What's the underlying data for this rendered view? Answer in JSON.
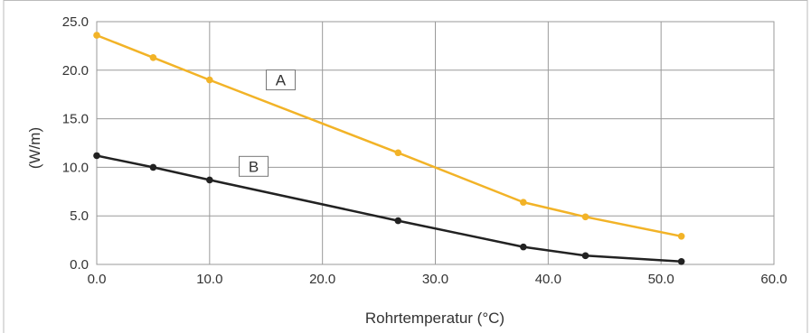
{
  "chart_data": {
    "type": "line",
    "title": "",
    "xlabel": "Rohrtemperatur (°C)",
    "ylabel": "(W/m)",
    "xlim": [
      0,
      60
    ],
    "ylim": [
      0,
      25
    ],
    "x_ticks": [
      "0.0",
      "10.0",
      "20.0",
      "30.0",
      "40.0",
      "50.0",
      "60.0"
    ],
    "y_ticks": [
      "0.0",
      "5.0",
      "10.0",
      "15.0",
      "20.0",
      "25.0"
    ],
    "grid": true,
    "series": [
      {
        "name": "A",
        "color": "#f2b327",
        "points": [
          {
            "x": 0.0,
            "y": 23.6
          },
          {
            "x": 5.0,
            "y": 21.3
          },
          {
            "x": 10.0,
            "y": 19.0
          },
          {
            "x": 26.7,
            "y": 11.5
          },
          {
            "x": 37.8,
            "y": 6.4
          },
          {
            "x": 43.3,
            "y": 4.9
          },
          {
            "x": 51.8,
            "y": 2.9
          }
        ]
      },
      {
        "name": "B",
        "color": "#222222",
        "points": [
          {
            "x": 0.0,
            "y": 11.2
          },
          {
            "x": 5.0,
            "y": 10.0
          },
          {
            "x": 10.0,
            "y": 8.7
          },
          {
            "x": 26.7,
            "y": 4.5
          },
          {
            "x": 37.8,
            "y": 1.8
          },
          {
            "x": 43.3,
            "y": 0.9
          },
          {
            "x": 51.8,
            "y": 0.3
          }
        ]
      }
    ]
  }
}
